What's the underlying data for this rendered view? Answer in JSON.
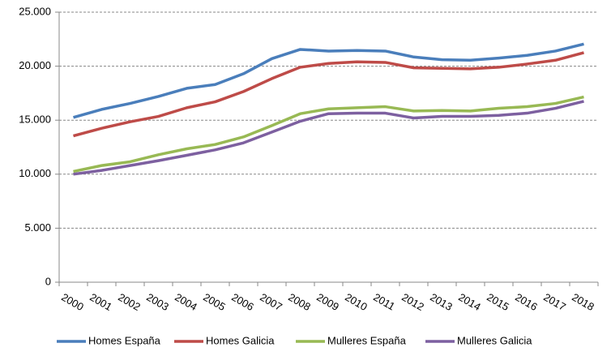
{
  "chart_data": {
    "type": "line",
    "categories": [
      "2000",
      "2001",
      "2002",
      "2003",
      "2004",
      "2005",
      "2006",
      "2007",
      "2008",
      "2009",
      "2010",
      "2011",
      "2012",
      "2013",
      "2014",
      "2015",
      "2016",
      "2017",
      "2018"
    ],
    "series": [
      {
        "name": "Homes España",
        "color": "#4a7ebb",
        "values": [
          15250,
          16000,
          16550,
          17200,
          17950,
          18300,
          19300,
          20700,
          21550,
          21400,
          21450,
          21400,
          20850,
          20600,
          20550,
          20750,
          21000,
          21400,
          22050
        ]
      },
      {
        "name": "Homes Galicia",
        "color": "#be4b48",
        "values": [
          13550,
          14250,
          14850,
          15350,
          16150,
          16700,
          17650,
          18850,
          19900,
          20250,
          20400,
          20350,
          19850,
          19800,
          19750,
          19900,
          20200,
          20550,
          21250
        ]
      },
      {
        "name": "Mulleres España",
        "color": "#98b954",
        "values": [
          10250,
          10800,
          11150,
          11800,
          12350,
          12750,
          13450,
          14500,
          15600,
          16050,
          16150,
          16250,
          15850,
          15900,
          15850,
          16100,
          16250,
          16550,
          17150
        ]
      },
      {
        "name": "Mulleres Galicia",
        "color": "#7d60a0",
        "values": [
          10000,
          10350,
          10800,
          11250,
          11750,
          12250,
          12900,
          13900,
          14900,
          15600,
          15650,
          15650,
          15200,
          15350,
          15350,
          15450,
          15650,
          16100,
          16750
        ]
      }
    ],
    "ylim": [
      0,
      25000
    ],
    "yticks": [
      0,
      {
        "value": 5000,
        "label": "5.000"
      },
      {
        "value": 10000,
        "label": "10.000"
      },
      {
        "value": 15000,
        "label": "15.000"
      },
      {
        "value": 20000,
        "label": "20.000"
      },
      {
        "value": 25000,
        "label": "25.000"
      }
    ],
    "grid": true,
    "legend": "bottom"
  }
}
